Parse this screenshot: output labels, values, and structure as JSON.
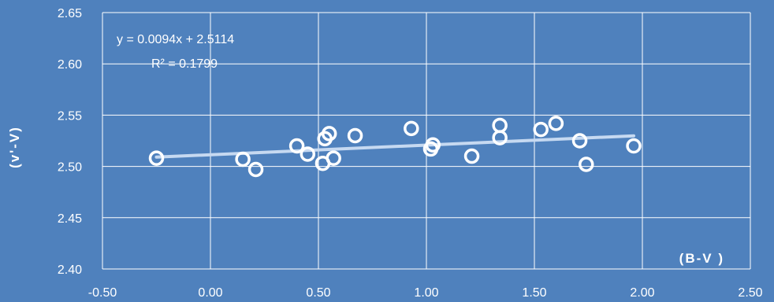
{
  "chart_data": {
    "type": "scatter",
    "xlabel": "(B-V )",
    "ylabel": "(v'-V)",
    "xlim": [
      -0.5,
      2.5
    ],
    "ylim": [
      2.4,
      2.65
    ],
    "x_ticks": [
      "-0.50",
      "0.00",
      "0.50",
      "1.00",
      "1.50",
      "2.00",
      "2.50"
    ],
    "y_ticks": [
      "2.40",
      "2.45",
      "2.50",
      "2.55",
      "2.60",
      "2.65"
    ],
    "grid": true,
    "marker_color": "#ffffff",
    "trendline_color": "#c6d9f1",
    "trendline": {
      "slope": 0.0094,
      "intercept": 2.5114,
      "equation": "y = 0.0094x + 2.5114",
      "r_squared_label": "R² = 0.1799"
    },
    "points": [
      {
        "x": -0.25,
        "y": 2.508
      },
      {
        "x": 0.15,
        "y": 2.507
      },
      {
        "x": 0.21,
        "y": 2.497
      },
      {
        "x": 0.4,
        "y": 2.52
      },
      {
        "x": 0.45,
        "y": 2.512
      },
      {
        "x": 0.52,
        "y": 2.503
      },
      {
        "x": 0.53,
        "y": 2.527
      },
      {
        "x": 0.55,
        "y": 2.532
      },
      {
        "x": 0.57,
        "y": 2.508
      },
      {
        "x": 0.67,
        "y": 2.53
      },
      {
        "x": 0.93,
        "y": 2.537
      },
      {
        "x": 1.02,
        "y": 2.517
      },
      {
        "x": 1.03,
        "y": 2.521
      },
      {
        "x": 1.21,
        "y": 2.51
      },
      {
        "x": 1.34,
        "y": 2.54
      },
      {
        "x": 1.34,
        "y": 2.528
      },
      {
        "x": 1.53,
        "y": 2.536
      },
      {
        "x": 1.6,
        "y": 2.542
      },
      {
        "x": 1.71,
        "y": 2.525
      },
      {
        "x": 1.74,
        "y": 2.502
      },
      {
        "x": 1.96,
        "y": 2.52
      }
    ]
  }
}
